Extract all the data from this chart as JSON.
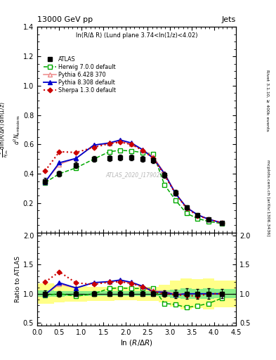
{
  "title_top": "13000 GeV pp",
  "title_right": "Jets",
  "plot_label": "ln(R/Δ R) (Lund plane 3.74<ln(1/z)<4.02)",
  "watermark": "ATLAS_2020_I1790256",
  "right_label1": "Rivet 3.1.10, ≥ 400k events",
  "right_label2": "mcplots.cern.ch [arXiv:1306.3436]",
  "ylabel_main": "d² N_emissions",
  "ylabel_ratio": "Ratio to ATLAS",
  "xlabel": "ln (R/Δ R)",
  "x_atlas": [
    0.18,
    0.5,
    0.88,
    1.28,
    1.63,
    1.88,
    2.13,
    2.38,
    2.63,
    2.88,
    3.13,
    3.38,
    3.63,
    3.88,
    4.18
  ],
  "y_atlas": [
    0.35,
    0.4,
    0.46,
    0.5,
    0.505,
    0.51,
    0.51,
    0.5,
    0.49,
    0.39,
    0.27,
    0.17,
    0.12,
    0.09,
    0.065
  ],
  "ye_atlas": [
    0.02,
    0.02,
    0.02,
    0.02,
    0.02,
    0.02,
    0.02,
    0.02,
    0.02,
    0.02,
    0.02,
    0.015,
    0.01,
    0.008,
    0.005
  ],
  "x_herwig": [
    0.18,
    0.5,
    0.88,
    1.28,
    1.63,
    1.88,
    2.13,
    2.38,
    2.63,
    2.88,
    3.13,
    3.38,
    3.63,
    3.88,
    4.18
  ],
  "y_herwig": [
    0.34,
    0.4,
    0.44,
    0.5,
    0.55,
    0.56,
    0.555,
    0.545,
    0.535,
    0.325,
    0.22,
    0.13,
    0.095,
    0.075,
    0.06
  ],
  "x_pythia6": [
    0.18,
    0.5,
    0.88,
    1.28,
    1.63,
    1.88,
    2.13,
    2.38,
    2.63,
    2.88,
    3.13,
    3.38,
    3.63,
    3.88,
    4.18
  ],
  "y_pythia6": [
    0.345,
    0.465,
    0.505,
    0.595,
    0.605,
    0.625,
    0.6,
    0.565,
    0.515,
    0.405,
    0.27,
    0.17,
    0.12,
    0.09,
    0.065
  ],
  "x_pythia8": [
    0.18,
    0.5,
    0.88,
    1.28,
    1.63,
    1.88,
    2.13,
    2.38,
    2.63,
    2.88,
    3.13,
    3.38,
    3.63,
    3.88,
    4.18
  ],
  "y_pythia8": [
    0.345,
    0.475,
    0.505,
    0.595,
    0.61,
    0.63,
    0.61,
    0.565,
    0.505,
    0.4,
    0.265,
    0.17,
    0.12,
    0.09,
    0.065
  ],
  "x_sherpa": [
    0.18,
    0.5,
    0.88,
    1.28,
    1.63,
    1.88,
    2.13,
    2.38,
    2.63,
    2.88,
    3.13,
    3.38,
    3.63,
    3.88,
    4.18
  ],
  "y_sherpa": [
    0.42,
    0.55,
    0.545,
    0.58,
    0.605,
    0.615,
    0.6,
    0.56,
    0.505,
    0.39,
    0.265,
    0.165,
    0.115,
    0.09,
    0.065
  ],
  "color_atlas": "#000000",
  "color_herwig": "#00aa00",
  "color_pythia6": "#ee8888",
  "color_pythia8": "#0000cc",
  "color_sherpa": "#cc0000",
  "bin_edges": [
    0.0,
    0.375,
    0.625,
    1.125,
    1.5,
    1.75,
    2.0,
    2.25,
    2.5,
    2.75,
    3.0,
    3.25,
    3.5,
    3.75,
    4.0,
    4.5
  ],
  "ylim_main": [
    0.0,
    1.4
  ],
  "ylim_ratio": [
    0.45,
    2.05
  ],
  "xlim": [
    0.0,
    4.5
  ],
  "ratio_yticks": [
    0.5,
    1.0,
    1.5,
    2.0
  ],
  "main_yticks": [
    0.2,
    0.4,
    0.6,
    0.8,
    1.0,
    1.2,
    1.4
  ]
}
